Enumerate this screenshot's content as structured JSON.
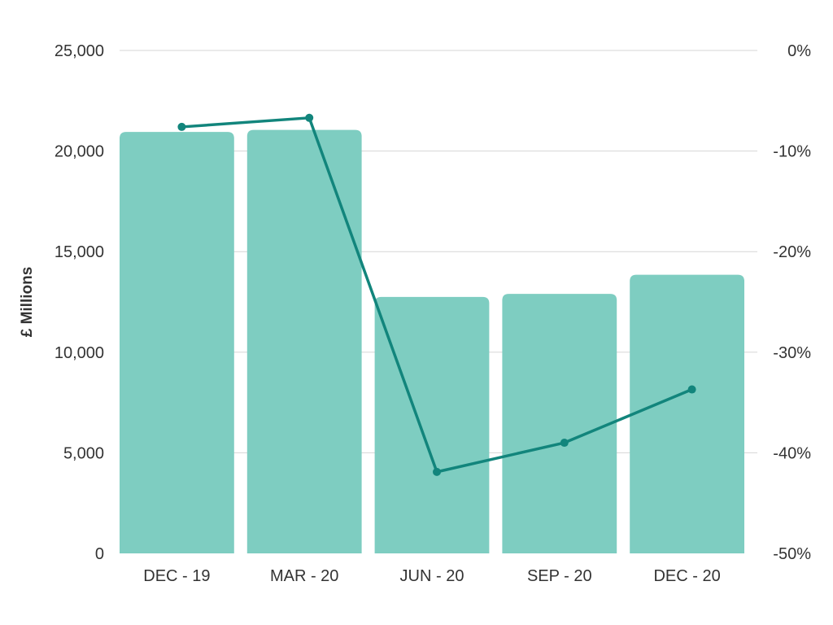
{
  "chart_data": {
    "type": "bar",
    "categories": [
      "DEC - 19",
      "MAR - 20",
      "JUN - 20",
      "SEP - 20",
      "DEC - 20"
    ],
    "series": [
      {
        "type": "bar",
        "axis": "left",
        "values": [
          20950,
          21050,
          12750,
          12900,
          13850
        ]
      },
      {
        "type": "line",
        "axis": "right",
        "values": [
          -7.6,
          -6.7,
          -41.9,
          -39.0,
          -33.7
        ]
      }
    ],
    "ylabel": "£ Millions",
    "ylim": [
      0,
      25000
    ],
    "yticks": [
      "0",
      "5,000",
      "10,000",
      "15,000",
      "20,000",
      "25,000"
    ],
    "y2lim": [
      -50,
      0
    ],
    "y2ticks": [
      "-50%",
      "-40%",
      "-30%",
      "-20%",
      "-10%",
      "0%"
    ],
    "grid": true,
    "legend": "none",
    "colors": {
      "bar": "#7ecdc1",
      "line": "#12857c",
      "grid": "#d6d6d6",
      "text": "#333333"
    }
  }
}
